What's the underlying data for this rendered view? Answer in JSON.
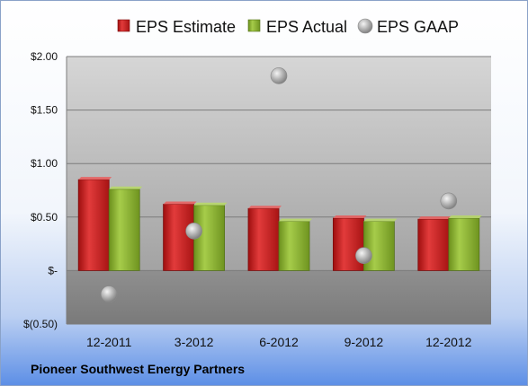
{
  "chart_data": {
    "type": "bar",
    "title": "",
    "xlabel": "",
    "ylabel": "",
    "categories": [
      "12-2011",
      "3-2012",
      "6-2012",
      "9-2012",
      "12-2012"
    ],
    "series": [
      {
        "name": "EPS Estimate",
        "kind": "bar",
        "color": "#cc1f1f",
        "values": [
          0.85,
          0.62,
          0.58,
          0.49,
          0.48
        ]
      },
      {
        "name": "EPS Actual",
        "kind": "bar",
        "color": "#8ab32e",
        "values": [
          0.76,
          0.61,
          0.46,
          0.46,
          0.49
        ]
      },
      {
        "name": "EPS GAAP",
        "kind": "marker",
        "color": "#a8a8a8",
        "values": [
          -0.22,
          0.37,
          1.82,
          0.14,
          0.65
        ]
      }
    ],
    "ylim": [
      -0.5,
      2.0
    ],
    "yticks": [
      2.0,
      1.5,
      1.0,
      0.5,
      0,
      -0.5
    ],
    "ytick_labels": [
      "$2.00",
      "$1.50",
      "$1.00",
      "$0.50",
      "$-",
      "$(0.50)"
    ],
    "grid": true,
    "legend_position": "top",
    "footer": "Pioneer Southwest Energy Partners"
  }
}
